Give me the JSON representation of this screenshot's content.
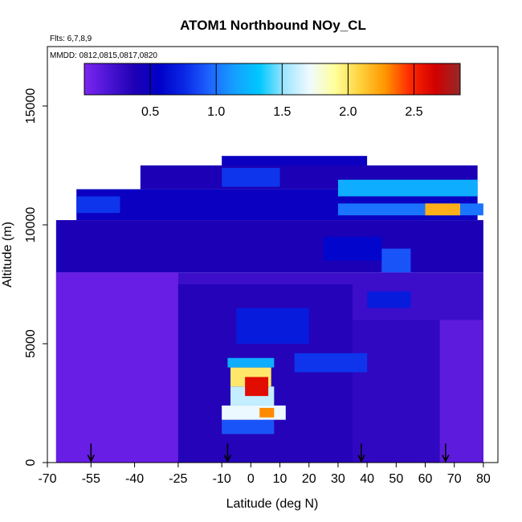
{
  "chart_data": {
    "type": "heatmap",
    "title": "ATOM1 Northbound NOy_CL",
    "flights_note": "Flts: 6,7,8,9",
    "dates_note": "MMDD: 0812,0815,0817,0820",
    "xlabel": "Latitude (deg N)",
    "ylabel": "Altitude (m)",
    "xlim": [
      -70,
      85
    ],
    "ylim": [
      0,
      17500
    ],
    "x_ticks": [
      -70,
      -55,
      -40,
      -25,
      -10,
      0,
      10,
      20,
      30,
      40,
      50,
      60,
      70,
      80
    ],
    "x_tick_labels": [
      "-70",
      "-55",
      "-40",
      "-25",
      "-10",
      "0",
      "10",
      "20",
      "30",
      "40",
      "50",
      "60",
      "70",
      "80"
    ],
    "y_ticks": [
      0,
      5000,
      10000,
      15000
    ],
    "y_tick_labels": [
      "0",
      "5000",
      "10000",
      "15000"
    ],
    "colorbar": {
      "range": [
        0,
        2.85
      ],
      "ticks": [
        0.5,
        1.0,
        1.5,
        2.0,
        2.5
      ],
      "tick_labels": [
        "0.5",
        "1.0",
        "1.5",
        "2.0",
        "2.5"
      ],
      "colors": [
        "#7d26f0",
        "#4a14d4",
        "#1e00b4",
        "#0000c8",
        "#0a28e6",
        "#1e64ff",
        "#14a0ff",
        "#00c8ff",
        "#a0e6ff",
        "#f0faff",
        "#ffff9b",
        "#ffd23c",
        "#ff9600",
        "#ff2800",
        "#d20000",
        "#962828"
      ]
    },
    "arrow_latitudes": [
      -55,
      -8,
      38,
      67
    ],
    "regions": [
      {
        "lat0": -67,
        "lat1": 80,
        "alt0": 0,
        "alt1": 8000,
        "value": 0.25
      },
      {
        "lat0": -67,
        "lat1": 80,
        "alt0": 8000,
        "alt1": 10200,
        "value": 0.4
      },
      {
        "lat0": -60,
        "lat1": 78,
        "alt0": 10200,
        "alt1": 11500,
        "value": 0.5
      },
      {
        "lat0": -38,
        "lat1": 78,
        "alt0": 11500,
        "alt1": 12500,
        "value": 0.4
      },
      {
        "lat0": -10,
        "lat1": 40,
        "alt0": 12500,
        "alt1": 12900,
        "value": 0.5
      },
      {
        "lat0": -67,
        "lat1": -25,
        "alt0": 0,
        "alt1": 8000,
        "value": 0.08
      },
      {
        "lat0": -25,
        "lat1": 35,
        "alt0": 0,
        "alt1": 7500,
        "value": 0.35
      },
      {
        "lat0": 35,
        "lat1": 80,
        "alt0": 0,
        "alt1": 6000,
        "value": 0.3
      },
      {
        "lat0": 65,
        "lat1": 80,
        "alt0": 0,
        "alt1": 6000,
        "value": 0.12
      },
      {
        "lat0": 30,
        "lat1": 80,
        "alt0": 10400,
        "alt1": 10900,
        "value": 1.0
      },
      {
        "lat0": 60,
        "lat1": 72,
        "alt0": 10400,
        "alt1": 10900,
        "value": 2.2
      },
      {
        "lat0": 30,
        "lat1": 78,
        "alt0": 11200,
        "alt1": 11900,
        "value": 1.2
      },
      {
        "lat0": -10,
        "lat1": 10,
        "alt0": 11600,
        "alt1": 12400,
        "value": 0.8
      },
      {
        "lat0": -60,
        "lat1": -45,
        "alt0": 10500,
        "alt1": 11200,
        "value": 0.8
      },
      {
        "lat0": -10,
        "lat1": 8,
        "alt0": 1200,
        "alt1": 1800,
        "value": 0.9
      },
      {
        "lat0": -10,
        "lat1": 12,
        "alt0": 1800,
        "alt1": 2400,
        "value": 1.7
      },
      {
        "lat0": -7,
        "lat1": 8,
        "alt0": 2400,
        "alt1": 3200,
        "value": 1.6
      },
      {
        "lat0": -7,
        "lat1": 7,
        "alt0": 3200,
        "alt1": 4000,
        "value": 2.0
      },
      {
        "lat0": -8,
        "lat1": 8,
        "alt0": 4000,
        "alt1": 4400,
        "value": 1.2
      },
      {
        "lat0": -2,
        "lat1": 6,
        "alt0": 2800,
        "alt1": 3600,
        "value": 2.6
      },
      {
        "lat0": 3,
        "lat1": 8,
        "alt0": 1900,
        "alt1": 2300,
        "value": 2.3
      },
      {
        "lat0": 15,
        "lat1": 40,
        "alt0": 3800,
        "alt1": 4600,
        "value": 0.8
      },
      {
        "lat0": -5,
        "lat1": 20,
        "alt0": 5000,
        "alt1": 6500,
        "value": 0.7
      },
      {
        "lat0": 40,
        "lat1": 55,
        "alt0": 6500,
        "alt1": 7200,
        "value": 0.7
      },
      {
        "lat0": 45,
        "lat1": 55,
        "alt0": 8000,
        "alt1": 9000,
        "value": 0.9
      },
      {
        "lat0": 25,
        "lat1": 45,
        "alt0": 8500,
        "alt1": 9500,
        "value": 0.6
      }
    ]
  }
}
